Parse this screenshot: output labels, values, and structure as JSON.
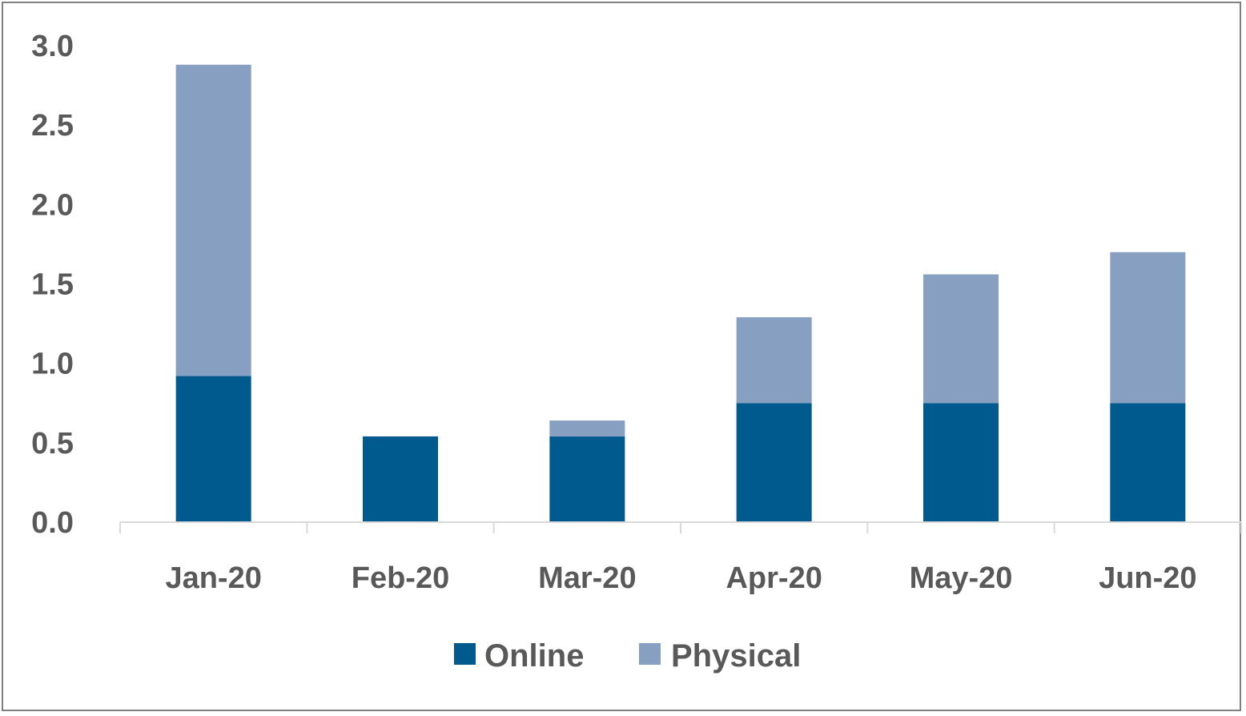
{
  "chart_data": {
    "type": "bar",
    "stacked": true,
    "title": "",
    "xlabel": "",
    "ylabel": "",
    "categories": [
      "Jan-20",
      "Feb-20",
      "Mar-20",
      "Apr-20",
      "May-20",
      "Jun-20"
    ],
    "series": [
      {
        "name": "Online",
        "values": [
          0.92,
          0.54,
          0.54,
          0.75,
          0.75,
          0.75
        ],
        "color": "#005A8E"
      },
      {
        "name": "Physical",
        "values": [
          1.96,
          0.0,
          0.1,
          0.54,
          0.81,
          0.95
        ],
        "color": "#879FC0"
      }
    ],
    "ylim": [
      0,
      3.0
    ],
    "yticks": [
      "0.0",
      "0.5",
      "1.0",
      "1.5",
      "2.0",
      "2.5",
      "3.0"
    ],
    "grid": false,
    "legend": "bottom-center",
    "axis_color": "#D9D9D9",
    "label_color": "#595959"
  }
}
